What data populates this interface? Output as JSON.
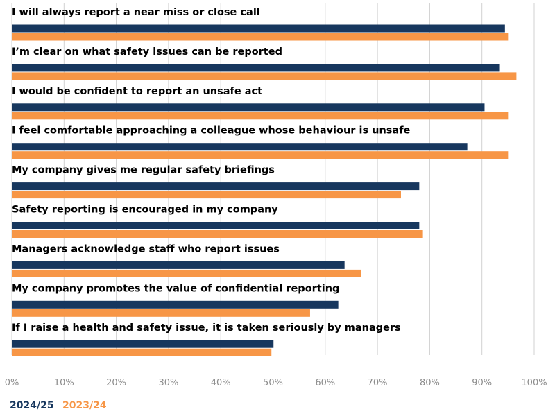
{
  "chart_data": {
    "type": "bar",
    "orientation": "horizontal",
    "categories": [
      "I will always report a near miss or close call",
      "I’m clear on what safety issues can be reported",
      "I would be confident to report an unsafe act",
      "I feel comfortable approaching a colleague whose behaviour is unsafe",
      "My company gives me regular safety briefings",
      "Safety reporting is encouraged in my company",
      "Managers acknowledge staff who report issues",
      "My company promotes the value of confidential reporting",
      "If I raise a health and safety issue, it is taken seriously by managers"
    ],
    "series": [
      {
        "name": "2024/25",
        "color": "#17375e",
        "values": [
          94.4,
          93.3,
          90.5,
          87.2,
          78.0,
          78.0,
          63.7,
          62.5,
          50.1
        ]
      },
      {
        "name": "2023/24",
        "color": "#f79646",
        "values": [
          95.0,
          96.6,
          95.0,
          95.0,
          74.5,
          78.7,
          66.8,
          57.1,
          49.7
        ]
      }
    ],
    "xlim": [
      0,
      100
    ],
    "xticks": [
      0,
      10,
      20,
      30,
      40,
      50,
      60,
      70,
      80,
      90,
      100
    ],
    "tick_suffix": "%",
    "grid": true,
    "legend_position": "bottom-left",
    "title": "",
    "xlabel": "",
    "ylabel": ""
  }
}
